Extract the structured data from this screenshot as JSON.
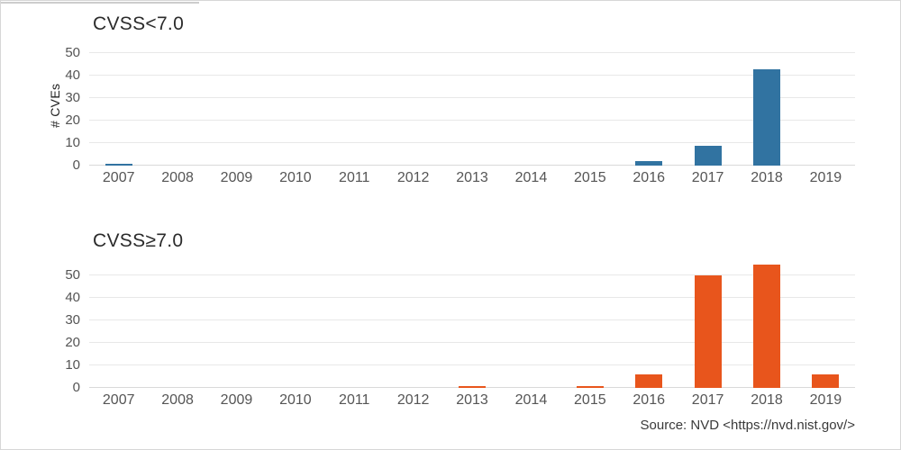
{
  "page": {
    "source_note": "Source: NVD <https://nvd.nist.gov/>"
  },
  "chart_data": [
    {
      "type": "bar",
      "title": "CVSS<7.0",
      "ylabel": "# CVEs",
      "categories": [
        "2007",
        "2008",
        "2009",
        "2010",
        "2011",
        "2012",
        "2013",
        "2014",
        "2015",
        "2016",
        "2017",
        "2018",
        "2019"
      ],
      "values": [
        1,
        0,
        0,
        0,
        0,
        0,
        0,
        0,
        0,
        2,
        9,
        43,
        0
      ],
      "yticks": [
        0,
        10,
        20,
        30,
        40,
        50
      ],
      "ylim": [
        0,
        53
      ],
      "grid": true,
      "legend": "none",
      "bar_color": "#3173a1"
    },
    {
      "type": "bar",
      "title": "CVSS≥7.0",
      "ylabel": "",
      "categories": [
        "2007",
        "2008",
        "2009",
        "2010",
        "2011",
        "2012",
        "2013",
        "2014",
        "2015",
        "2016",
        "2017",
        "2018",
        "2019"
      ],
      "values": [
        0,
        0,
        0,
        0,
        0,
        0,
        1,
        0,
        1,
        6,
        50,
        55,
        6
      ],
      "yticks": [
        0,
        10,
        20,
        30,
        40,
        50
      ],
      "ylim": [
        0,
        57
      ],
      "grid": true,
      "legend": "none",
      "bar_color": "#e8551c"
    }
  ]
}
